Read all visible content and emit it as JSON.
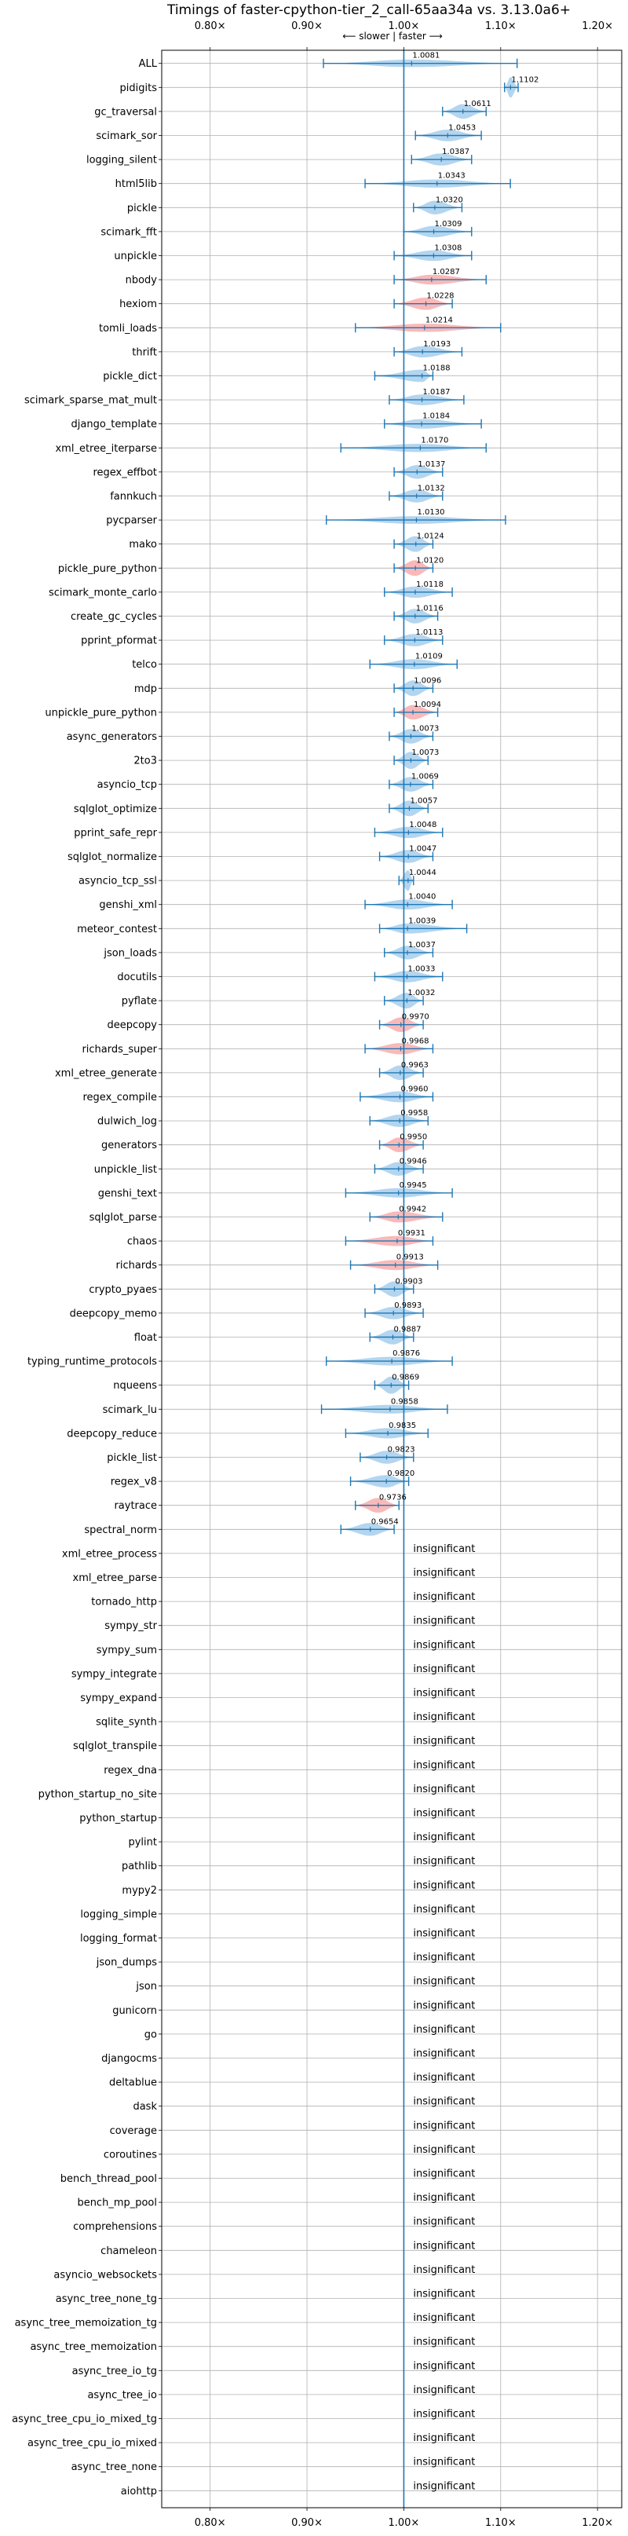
{
  "chart_data": {
    "type": "violin",
    "title": "Timings of faster-cpython-tier_2_call-65aa34a vs. 3.13.0a6+",
    "direction_label": "⟵ slower | faster ⟶",
    "xlim": [
      0.75,
      1.225
    ],
    "xticks": [
      0.8,
      0.9,
      1.0,
      1.1,
      1.2
    ],
    "xtick_labels": [
      "0.80×",
      "0.90×",
      "1.00×",
      "1.10×",
      "1.20×"
    ],
    "reference_line": 1.0,
    "grid": true,
    "colors": {
      "faster": "#9ec9ea",
      "slower": "#f7a5a5",
      "errorbar": "#1f77b4",
      "reference": "#1f77b4",
      "grid": "#b0b0b0"
    },
    "insignificant_text": "insignificant",
    "benchmarks": [
      {
        "name": "ALL",
        "value": 1.0081,
        "label": "1.0081",
        "low": 0.917,
        "high": 1.117,
        "color": "faster"
      },
      {
        "name": "pidigits",
        "value": 1.1102,
        "label": "1.1102",
        "low": 1.104,
        "high": 1.118,
        "color": "faster"
      },
      {
        "name": "gc_traversal",
        "value": 1.0611,
        "label": "1.0611",
        "low": 1.04,
        "high": 1.085,
        "color": "faster"
      },
      {
        "name": "scimark_sor",
        "value": 1.0453,
        "label": "1.0453",
        "low": 1.012,
        "high": 1.08,
        "color": "faster"
      },
      {
        "name": "logging_silent",
        "value": 1.0387,
        "label": "1.0387",
        "low": 1.008,
        "high": 1.07,
        "color": "faster"
      },
      {
        "name": "html5lib",
        "value": 1.0343,
        "label": "1.0343",
        "low": 0.96,
        "high": 1.11,
        "color": "faster"
      },
      {
        "name": "pickle",
        "value": 1.032,
        "label": "1.0320",
        "low": 1.01,
        "high": 1.06,
        "color": "faster"
      },
      {
        "name": "scimark_fft",
        "value": 1.0309,
        "label": "1.0309",
        "low": 1.0,
        "high": 1.07,
        "color": "faster"
      },
      {
        "name": "unpickle",
        "value": 1.0308,
        "label": "1.0308",
        "low": 0.99,
        "high": 1.07,
        "color": "faster"
      },
      {
        "name": "nbody",
        "value": 1.0287,
        "label": "1.0287",
        "low": 0.99,
        "high": 1.085,
        "color": "slower"
      },
      {
        "name": "hexiom",
        "value": 1.0228,
        "label": "1.0228",
        "low": 0.99,
        "high": 1.05,
        "color": "slower"
      },
      {
        "name": "tomli_loads",
        "value": 1.0214,
        "label": "1.0214",
        "low": 0.95,
        "high": 1.1,
        "color": "slower"
      },
      {
        "name": "thrift",
        "value": 1.0193,
        "label": "1.0193",
        "low": 0.99,
        "high": 1.06,
        "color": "faster"
      },
      {
        "name": "pickle_dict",
        "value": 1.0188,
        "label": "1.0188",
        "low": 0.97,
        "high": 1.03,
        "color": "faster"
      },
      {
        "name": "scimark_sparse_mat_mult",
        "value": 1.0187,
        "label": "1.0187",
        "low": 0.985,
        "high": 1.062,
        "color": "faster"
      },
      {
        "name": "django_template",
        "value": 1.0184,
        "label": "1.0184",
        "low": 0.98,
        "high": 1.08,
        "color": "faster"
      },
      {
        "name": "xml_etree_iterparse",
        "value": 1.017,
        "label": "1.0170",
        "low": 0.935,
        "high": 1.085,
        "color": "faster"
      },
      {
        "name": "regex_effbot",
        "value": 1.0137,
        "label": "1.0137",
        "low": 0.99,
        "high": 1.04,
        "color": "faster"
      },
      {
        "name": "fannkuch",
        "value": 1.0132,
        "label": "1.0132",
        "low": 0.985,
        "high": 1.04,
        "color": "faster"
      },
      {
        "name": "pycparser",
        "value": 1.013,
        "label": "1.0130",
        "low": 0.92,
        "high": 1.105,
        "color": "faster"
      },
      {
        "name": "mako",
        "value": 1.0124,
        "label": "1.0124",
        "low": 0.99,
        "high": 1.03,
        "color": "faster"
      },
      {
        "name": "pickle_pure_python",
        "value": 1.012,
        "label": "1.0120",
        "low": 0.99,
        "high": 1.03,
        "color": "slower"
      },
      {
        "name": "scimark_monte_carlo",
        "value": 1.0118,
        "label": "1.0118",
        "low": 0.98,
        "high": 1.05,
        "color": "faster"
      },
      {
        "name": "create_gc_cycles",
        "value": 1.0116,
        "label": "1.0116",
        "low": 0.99,
        "high": 1.035,
        "color": "faster"
      },
      {
        "name": "pprint_pformat",
        "value": 1.0113,
        "label": "1.0113",
        "low": 0.98,
        "high": 1.04,
        "color": "faster"
      },
      {
        "name": "telco",
        "value": 1.0109,
        "label": "1.0109",
        "low": 0.965,
        "high": 1.055,
        "color": "faster"
      },
      {
        "name": "mdp",
        "value": 1.0096,
        "label": "1.0096",
        "low": 0.99,
        "high": 1.03,
        "color": "faster"
      },
      {
        "name": "unpickle_pure_python",
        "value": 1.0094,
        "label": "1.0094",
        "low": 0.99,
        "high": 1.035,
        "color": "slower"
      },
      {
        "name": "async_generators",
        "value": 1.0073,
        "label": "1.0073",
        "low": 0.985,
        "high": 1.03,
        "color": "faster"
      },
      {
        "name": "2to3",
        "value": 1.0073,
        "label": "1.0073",
        "low": 0.99,
        "high": 1.025,
        "color": "faster"
      },
      {
        "name": "asyncio_tcp",
        "value": 1.0069,
        "label": "1.0069",
        "low": 0.985,
        "high": 1.03,
        "color": "faster"
      },
      {
        "name": "sqlglot_optimize",
        "value": 1.0057,
        "label": "1.0057",
        "low": 0.985,
        "high": 1.025,
        "color": "faster"
      },
      {
        "name": "pprint_safe_repr",
        "value": 1.0048,
        "label": "1.0048",
        "low": 0.97,
        "high": 1.04,
        "color": "faster"
      },
      {
        "name": "sqlglot_normalize",
        "value": 1.0047,
        "label": "1.0047",
        "low": 0.975,
        "high": 1.03,
        "color": "faster"
      },
      {
        "name": "asyncio_tcp_ssl",
        "value": 1.0044,
        "label": "1.0044",
        "low": 0.995,
        "high": 1.01,
        "color": "faster"
      },
      {
        "name": "genshi_xml",
        "value": 1.004,
        "label": "1.0040",
        "low": 0.96,
        "high": 1.05,
        "color": "faster"
      },
      {
        "name": "meteor_contest",
        "value": 1.0039,
        "label": "1.0039",
        "low": 0.975,
        "high": 1.065,
        "color": "faster"
      },
      {
        "name": "json_loads",
        "value": 1.0037,
        "label": "1.0037",
        "low": 0.98,
        "high": 1.03,
        "color": "faster"
      },
      {
        "name": "docutils",
        "value": 1.0033,
        "label": "1.0033",
        "low": 0.97,
        "high": 1.04,
        "color": "faster"
      },
      {
        "name": "pyflate",
        "value": 1.0032,
        "label": "1.0032",
        "low": 0.98,
        "high": 1.02,
        "color": "faster"
      },
      {
        "name": "deepcopy",
        "value": 0.997,
        "label": "0.9970",
        "low": 0.975,
        "high": 1.02,
        "color": "slower"
      },
      {
        "name": "richards_super",
        "value": 0.9968,
        "label": "0.9968",
        "low": 0.96,
        "high": 1.03,
        "color": "slower"
      },
      {
        "name": "xml_etree_generate",
        "value": 0.9963,
        "label": "0.9963",
        "low": 0.975,
        "high": 1.02,
        "color": "faster"
      },
      {
        "name": "regex_compile",
        "value": 0.996,
        "label": "0.9960",
        "low": 0.955,
        "high": 1.03,
        "color": "faster"
      },
      {
        "name": "dulwich_log",
        "value": 0.9958,
        "label": "0.9958",
        "low": 0.965,
        "high": 1.025,
        "color": "faster"
      },
      {
        "name": "generators",
        "value": 0.995,
        "label": "0.9950",
        "low": 0.975,
        "high": 1.02,
        "color": "slower"
      },
      {
        "name": "unpickle_list",
        "value": 0.9946,
        "label": "0.9946",
        "low": 0.97,
        "high": 1.02,
        "color": "faster"
      },
      {
        "name": "genshi_text",
        "value": 0.9945,
        "label": "0.9945",
        "low": 0.94,
        "high": 1.05,
        "color": "faster"
      },
      {
        "name": "sqlglot_parse",
        "value": 0.9942,
        "label": "0.9942",
        "low": 0.965,
        "high": 1.04,
        "color": "slower"
      },
      {
        "name": "chaos",
        "value": 0.9931,
        "label": "0.9931",
        "low": 0.94,
        "high": 1.03,
        "color": "slower"
      },
      {
        "name": "richards",
        "value": 0.9913,
        "label": "0.9913",
        "low": 0.945,
        "high": 1.035,
        "color": "slower"
      },
      {
        "name": "crypto_pyaes",
        "value": 0.9903,
        "label": "0.9903",
        "low": 0.97,
        "high": 1.01,
        "color": "faster"
      },
      {
        "name": "deepcopy_memo",
        "value": 0.9893,
        "label": "0.9893",
        "low": 0.96,
        "high": 1.02,
        "color": "faster"
      },
      {
        "name": "float",
        "value": 0.9887,
        "label": "0.9887",
        "low": 0.965,
        "high": 1.01,
        "color": "faster"
      },
      {
        "name": "typing_runtime_protocols",
        "value": 0.9876,
        "label": "0.9876",
        "low": 0.92,
        "high": 1.05,
        "color": "faster"
      },
      {
        "name": "nqueens",
        "value": 0.9869,
        "label": "0.9869",
        "low": 0.97,
        "high": 1.005,
        "color": "faster"
      },
      {
        "name": "scimark_lu",
        "value": 0.9858,
        "label": "0.9858",
        "low": 0.915,
        "high": 1.045,
        "color": "faster"
      },
      {
        "name": "deepcopy_reduce",
        "value": 0.9835,
        "label": "0.9835",
        "low": 0.94,
        "high": 1.025,
        "color": "faster"
      },
      {
        "name": "pickle_list",
        "value": 0.9823,
        "label": "0.9823",
        "low": 0.955,
        "high": 1.01,
        "color": "faster"
      },
      {
        "name": "regex_v8",
        "value": 0.982,
        "label": "0.9820",
        "low": 0.945,
        "high": 1.005,
        "color": "faster"
      },
      {
        "name": "raytrace",
        "value": 0.9736,
        "label": "0.9736",
        "low": 0.95,
        "high": 0.995,
        "color": "slower"
      },
      {
        "name": "spectral_norm",
        "value": 0.9654,
        "label": "0.9654",
        "low": 0.935,
        "high": 0.99,
        "color": "faster"
      },
      {
        "name": "xml_etree_process",
        "insignificant": true
      },
      {
        "name": "xml_etree_parse",
        "insignificant": true
      },
      {
        "name": "tornado_http",
        "insignificant": true
      },
      {
        "name": "sympy_str",
        "insignificant": true
      },
      {
        "name": "sympy_sum",
        "insignificant": true
      },
      {
        "name": "sympy_integrate",
        "insignificant": true
      },
      {
        "name": "sympy_expand",
        "insignificant": true
      },
      {
        "name": "sqlite_synth",
        "insignificant": true
      },
      {
        "name": "sqlglot_transpile",
        "insignificant": true
      },
      {
        "name": "regex_dna",
        "insignificant": true
      },
      {
        "name": "python_startup_no_site",
        "insignificant": true
      },
      {
        "name": "python_startup",
        "insignificant": true
      },
      {
        "name": "pylint",
        "insignificant": true
      },
      {
        "name": "pathlib",
        "insignificant": true
      },
      {
        "name": "mypy2",
        "insignificant": true
      },
      {
        "name": "logging_simple",
        "insignificant": true
      },
      {
        "name": "logging_format",
        "insignificant": true
      },
      {
        "name": "json_dumps",
        "insignificant": true
      },
      {
        "name": "json",
        "insignificant": true
      },
      {
        "name": "gunicorn",
        "insignificant": true
      },
      {
        "name": "go",
        "insignificant": true
      },
      {
        "name": "djangocms",
        "insignificant": true
      },
      {
        "name": "deltablue",
        "insignificant": true
      },
      {
        "name": "dask",
        "insignificant": true
      },
      {
        "name": "coverage",
        "insignificant": true
      },
      {
        "name": "coroutines",
        "insignificant": true
      },
      {
        "name": "bench_thread_pool",
        "insignificant": true
      },
      {
        "name": "bench_mp_pool",
        "insignificant": true
      },
      {
        "name": "comprehensions",
        "insignificant": true
      },
      {
        "name": "chameleon",
        "insignificant": true
      },
      {
        "name": "asyncio_websockets",
        "insignificant": true
      },
      {
        "name": "async_tree_none_tg",
        "insignificant": true
      },
      {
        "name": "async_tree_memoization_tg",
        "insignificant": true
      },
      {
        "name": "async_tree_memoization",
        "insignificant": true
      },
      {
        "name": "async_tree_io_tg",
        "insignificant": true
      },
      {
        "name": "async_tree_io",
        "insignificant": true
      },
      {
        "name": "async_tree_cpu_io_mixed_tg",
        "insignificant": true
      },
      {
        "name": "async_tree_cpu_io_mixed",
        "insignificant": true
      },
      {
        "name": "async_tree_none",
        "insignificant": true
      },
      {
        "name": "aiohttp",
        "insignificant": true
      }
    ]
  }
}
